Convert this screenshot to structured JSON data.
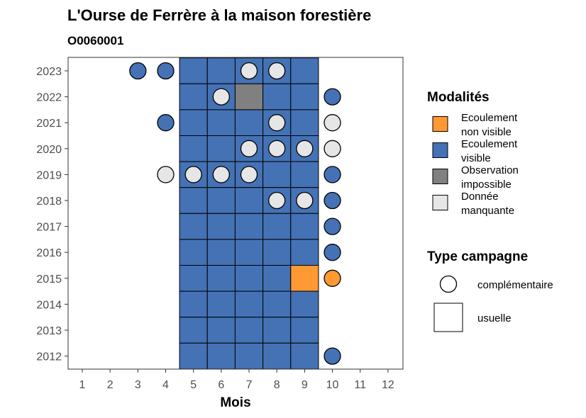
{
  "chart_data": {
    "type": "heatmap",
    "title": "L'Ourse de Ferrère à la maison forestière",
    "subtitle": "O0060001",
    "xlabel": "Mois",
    "x_ticks": [
      "1",
      "2",
      "3",
      "4",
      "5",
      "6",
      "7",
      "8",
      "9",
      "10",
      "11",
      "12"
    ],
    "y_ticks": [
      "2023",
      "2022",
      "2021",
      "2020",
      "2019",
      "2018",
      "2017",
      "2016",
      "2015",
      "2014",
      "2013",
      "2012"
    ],
    "colors": {
      "ecoulement_non_visible": "#FF9933",
      "ecoulement_visible": "#4472B5",
      "observation_impossible": "#808080",
      "donnee_manquante": "#E6E6E6"
    },
    "legend_modalites": {
      "title": "Modalités",
      "items": [
        {
          "key": "ecoulement_non_visible",
          "line1": "Ecoulement",
          "line2": "non visible"
        },
        {
          "key": "ecoulement_visible",
          "line1": "Ecoulement",
          "line2": "visible"
        },
        {
          "key": "observation_impossible",
          "line1": "Observation",
          "line2": "impossible"
        },
        {
          "key": "donnee_manquante",
          "line1": "Donnée",
          "line2": "manquante"
        }
      ]
    },
    "legend_type": {
      "title": "Type campagne",
      "items": [
        {
          "shape": "circle",
          "label": "complémentaire"
        },
        {
          "shape": "square",
          "label": "usuelle"
        }
      ]
    },
    "usuelle": [
      {
        "year": 2023,
        "month": 5,
        "status": "ecoulement_visible"
      },
      {
        "year": 2023,
        "month": 6,
        "status": "ecoulement_visible"
      },
      {
        "year": 2023,
        "month": 7,
        "status": "ecoulement_visible"
      },
      {
        "year": 2023,
        "month": 8,
        "status": "ecoulement_visible"
      },
      {
        "year": 2023,
        "month": 9,
        "status": "ecoulement_visible"
      },
      {
        "year": 2022,
        "month": 5,
        "status": "ecoulement_visible"
      },
      {
        "year": 2022,
        "month": 6,
        "status": "ecoulement_visible"
      },
      {
        "year": 2022,
        "month": 7,
        "status": "observation_impossible"
      },
      {
        "year": 2022,
        "month": 8,
        "status": "ecoulement_visible"
      },
      {
        "year": 2022,
        "month": 9,
        "status": "ecoulement_visible"
      },
      {
        "year": 2021,
        "month": 5,
        "status": "ecoulement_visible"
      },
      {
        "year": 2021,
        "month": 6,
        "status": "ecoulement_visible"
      },
      {
        "year": 2021,
        "month": 7,
        "status": "ecoulement_visible"
      },
      {
        "year": 2021,
        "month": 8,
        "status": "ecoulement_visible"
      },
      {
        "year": 2021,
        "month": 9,
        "status": "ecoulement_visible"
      },
      {
        "year": 2020,
        "month": 5,
        "status": "ecoulement_visible"
      },
      {
        "year": 2020,
        "month": 6,
        "status": "ecoulement_visible"
      },
      {
        "year": 2020,
        "month": 7,
        "status": "ecoulement_visible"
      },
      {
        "year": 2020,
        "month": 8,
        "status": "ecoulement_visible"
      },
      {
        "year": 2020,
        "month": 9,
        "status": "ecoulement_visible"
      },
      {
        "year": 2019,
        "month": 5,
        "status": "ecoulement_visible"
      },
      {
        "year": 2019,
        "month": 6,
        "status": "ecoulement_visible"
      },
      {
        "year": 2019,
        "month": 7,
        "status": "ecoulement_visible"
      },
      {
        "year": 2019,
        "month": 8,
        "status": "ecoulement_visible"
      },
      {
        "year": 2019,
        "month": 9,
        "status": "ecoulement_visible"
      },
      {
        "year": 2018,
        "month": 5,
        "status": "ecoulement_visible"
      },
      {
        "year": 2018,
        "month": 6,
        "status": "ecoulement_visible"
      },
      {
        "year": 2018,
        "month": 7,
        "status": "ecoulement_visible"
      },
      {
        "year": 2018,
        "month": 8,
        "status": "ecoulement_visible"
      },
      {
        "year": 2018,
        "month": 9,
        "status": "ecoulement_visible"
      },
      {
        "year": 2017,
        "month": 5,
        "status": "ecoulement_visible"
      },
      {
        "year": 2017,
        "month": 6,
        "status": "ecoulement_visible"
      },
      {
        "year": 2017,
        "month": 7,
        "status": "ecoulement_visible"
      },
      {
        "year": 2017,
        "month": 8,
        "status": "ecoulement_visible"
      },
      {
        "year": 2017,
        "month": 9,
        "status": "ecoulement_visible"
      },
      {
        "year": 2016,
        "month": 5,
        "status": "ecoulement_visible"
      },
      {
        "year": 2016,
        "month": 6,
        "status": "ecoulement_visible"
      },
      {
        "year": 2016,
        "month": 7,
        "status": "ecoulement_visible"
      },
      {
        "year": 2016,
        "month": 8,
        "status": "ecoulement_visible"
      },
      {
        "year": 2016,
        "month": 9,
        "status": "ecoulement_visible"
      },
      {
        "year": 2015,
        "month": 5,
        "status": "ecoulement_visible"
      },
      {
        "year": 2015,
        "month": 6,
        "status": "ecoulement_visible"
      },
      {
        "year": 2015,
        "month": 7,
        "status": "ecoulement_visible"
      },
      {
        "year": 2015,
        "month": 8,
        "status": "ecoulement_visible"
      },
      {
        "year": 2015,
        "month": 9,
        "status": "ecoulement_non_visible"
      },
      {
        "year": 2014,
        "month": 5,
        "status": "ecoulement_visible"
      },
      {
        "year": 2014,
        "month": 6,
        "status": "ecoulement_visible"
      },
      {
        "year": 2014,
        "month": 7,
        "status": "ecoulement_visible"
      },
      {
        "year": 2014,
        "month": 8,
        "status": "ecoulement_visible"
      },
      {
        "year": 2014,
        "month": 9,
        "status": "ecoulement_visible"
      },
      {
        "year": 2013,
        "month": 5,
        "status": "ecoulement_visible"
      },
      {
        "year": 2013,
        "month": 6,
        "status": "ecoulement_visible"
      },
      {
        "year": 2013,
        "month": 7,
        "status": "ecoulement_visible"
      },
      {
        "year": 2013,
        "month": 8,
        "status": "ecoulement_visible"
      },
      {
        "year": 2013,
        "month": 9,
        "status": "ecoulement_visible"
      },
      {
        "year": 2012,
        "month": 5,
        "status": "ecoulement_visible"
      },
      {
        "year": 2012,
        "month": 6,
        "status": "ecoulement_visible"
      },
      {
        "year": 2012,
        "month": 7,
        "status": "ecoulement_visible"
      },
      {
        "year": 2012,
        "month": 8,
        "status": "ecoulement_visible"
      },
      {
        "year": 2012,
        "month": 9,
        "status": "ecoulement_visible"
      }
    ],
    "complementaire": [
      {
        "year": 2023,
        "month": 3,
        "status": "ecoulement_visible"
      },
      {
        "year": 2023,
        "month": 4,
        "status": "ecoulement_visible"
      },
      {
        "year": 2023,
        "month": 7,
        "status": "donnee_manquante"
      },
      {
        "year": 2023,
        "month": 8,
        "status": "donnee_manquante"
      },
      {
        "year": 2022,
        "month": 6,
        "status": "donnee_manquante"
      },
      {
        "year": 2022,
        "month": 10,
        "status": "ecoulement_visible"
      },
      {
        "year": 2021,
        "month": 4,
        "status": "ecoulement_visible"
      },
      {
        "year": 2021,
        "month": 8,
        "status": "donnee_manquante"
      },
      {
        "year": 2021,
        "month": 10,
        "status": "donnee_manquante"
      },
      {
        "year": 2020,
        "month": 7,
        "status": "donnee_manquante"
      },
      {
        "year": 2020,
        "month": 8,
        "status": "donnee_manquante"
      },
      {
        "year": 2020,
        "month": 9,
        "status": "donnee_manquante"
      },
      {
        "year": 2020,
        "month": 10,
        "status": "donnee_manquante"
      },
      {
        "year": 2019,
        "month": 4,
        "status": "donnee_manquante"
      },
      {
        "year": 2019,
        "month": 5,
        "status": "donnee_manquante"
      },
      {
        "year": 2019,
        "month": 6,
        "status": "donnee_manquante"
      },
      {
        "year": 2019,
        "month": 7,
        "status": "donnee_manquante"
      },
      {
        "year": 2019,
        "month": 10,
        "status": "ecoulement_visible"
      },
      {
        "year": 2018,
        "month": 8,
        "status": "donnee_manquante"
      },
      {
        "year": 2018,
        "month": 9,
        "status": "donnee_manquante"
      },
      {
        "year": 2018,
        "month": 10,
        "status": "ecoulement_visible"
      },
      {
        "year": 2017,
        "month": 10,
        "status": "ecoulement_visible"
      },
      {
        "year": 2016,
        "month": 10,
        "status": "ecoulement_visible"
      },
      {
        "year": 2015,
        "month": 10,
        "status": "ecoulement_non_visible"
      },
      {
        "year": 2012,
        "month": 10,
        "status": "ecoulement_visible"
      }
    ]
  }
}
